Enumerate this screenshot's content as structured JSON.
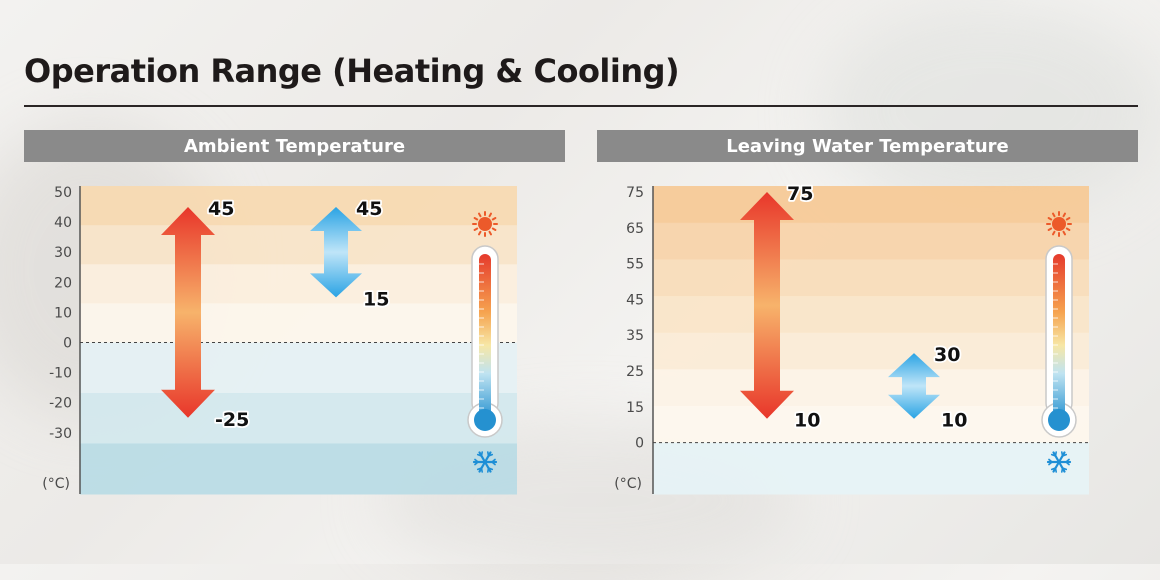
{
  "title": "Operation Range (Heating & Cooling)",
  "colors": {
    "heating_arrow_end": "#e8362a",
    "heating_arrow_mid": "#f7b36b",
    "cooling_arrow_end": "#2aa3e4",
    "cooling_arrow_mid": "#bfe5f8",
    "header_bg": "#8a8a8a",
    "warm_band_dark": "#f6d4a8",
    "cold_band": "#dcecf0"
  },
  "icons": {
    "hot": "sun-icon",
    "cold": "snowflake-icon",
    "gauge": "thermometer-icon"
  },
  "chart_data": [
    {
      "type": "range",
      "title": "Ambient Temperature",
      "unit_label": "(°C)",
      "y_ticks": [
        50,
        40,
        30,
        20,
        10,
        0,
        -10,
        -20,
        -30
      ],
      "series": [
        {
          "name": "",
          "kind": "heating",
          "min": -25,
          "max": 45,
          "min_label": "-25",
          "max_label": "45"
        },
        {
          "name": "",
          "kind": "cooling",
          "min": 15,
          "max": 45,
          "min_label": "15",
          "max_label": "45"
        }
      ]
    },
    {
      "type": "range",
      "title": "Leaving Water Temperature",
      "unit_label": "(°C)",
      "y_ticks": [
        75,
        65,
        55,
        45,
        35,
        25,
        15,
        0
      ],
      "series": [
        {
          "name": "",
          "kind": "heating",
          "min": 10,
          "max": 75,
          "min_label": "10",
          "max_label": "75"
        },
        {
          "name": "",
          "kind": "cooling",
          "min": 10,
          "max": 30,
          "min_label": "10",
          "max_label": "30"
        }
      ]
    }
  ]
}
